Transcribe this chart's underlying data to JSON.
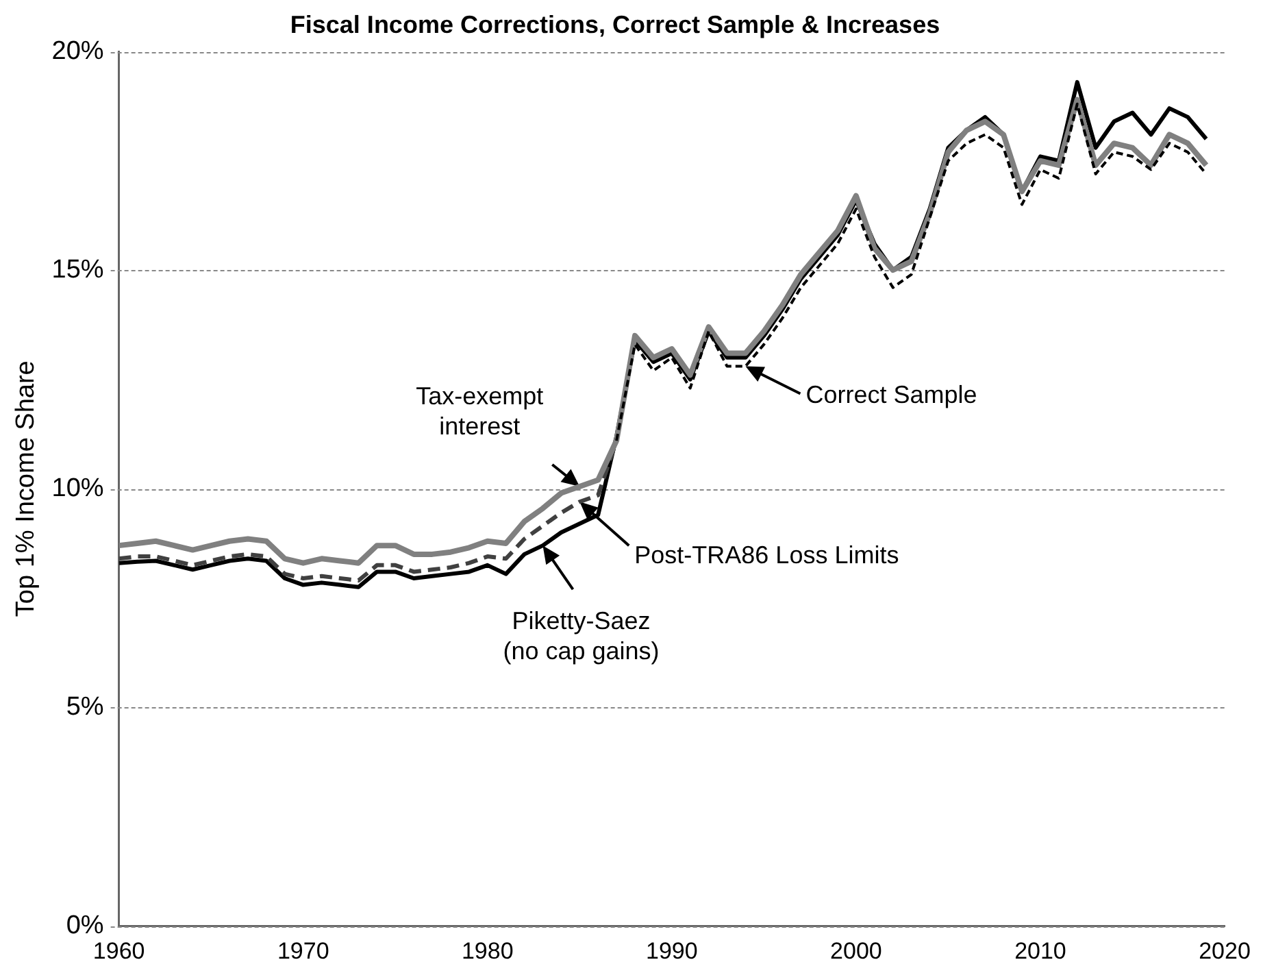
{
  "chart_data": {
    "type": "line",
    "title": "Fiscal Income Corrections, Correct Sample & Increases",
    "ylabel": "Top 1% Income Share",
    "x": [
      1960,
      1961,
      1962,
      1963,
      1964,
      1965,
      1966,
      1967,
      1968,
      1969,
      1970,
      1971,
      1972,
      1973,
      1974,
      1975,
      1976,
      1977,
      1978,
      1979,
      1980,
      1981,
      1982,
      1983,
      1984,
      1985,
      1986,
      1987,
      1988,
      1989,
      1990,
      1991,
      1992,
      1993,
      1994,
      1995,
      1996,
      1997,
      1998,
      1999,
      2000,
      2001,
      2002,
      2003,
      2004,
      2005,
      2006,
      2007,
      2008,
      2009,
      2010,
      2011,
      2012,
      2013,
      2014,
      2015,
      2016,
      2017,
      2018,
      2019
    ],
    "series": [
      {
        "color": "#000000",
        "line_style": "solid",
        "values": [
          8.3,
          8.33,
          8.35,
          8.25,
          8.15,
          8.25,
          8.35,
          8.4,
          8.35,
          7.95,
          7.8,
          7.85,
          7.8,
          7.75,
          8.1,
          8.1,
          7.95,
          8.0,
          8.05,
          8.1,
          8.25,
          8.05,
          8.5,
          8.7,
          9.0,
          9.2,
          9.4,
          11.2,
          13.4,
          12.9,
          13.1,
          12.5,
          13.6,
          13.0,
          13.0,
          13.5,
          14.1,
          14.8,
          15.3,
          15.8,
          16.6,
          15.6,
          15.0,
          15.3,
          16.4,
          17.8,
          18.2,
          18.5,
          18.1,
          16.8,
          17.6,
          17.5,
          19.3,
          17.8,
          18.4,
          18.6,
          18.1,
          18.7,
          18.5,
          18.0
        ]
      },
      {
        "color": "#404040",
        "line_style": "dashed",
        "values": [
          8.4,
          8.45,
          8.45,
          8.35,
          8.25,
          8.35,
          8.45,
          8.5,
          8.45,
          8.05,
          7.95,
          8.0,
          7.95,
          7.9,
          8.25,
          8.25,
          8.1,
          8.15,
          8.2,
          8.3,
          8.45,
          8.4,
          8.85,
          9.15,
          9.45,
          9.7,
          9.85,
          11.1,
          null,
          null,
          null,
          null,
          null,
          null,
          null,
          null,
          null,
          null,
          null,
          null,
          null,
          null,
          null,
          null,
          null,
          null,
          null,
          null,
          null,
          null,
          null,
          null,
          null,
          null,
          null,
          null,
          null,
          null,
          null,
          null
        ]
      },
      {
        "color": "#808080",
        "line_style": "solid",
        "values": [
          8.7,
          8.75,
          8.8,
          8.7,
          8.6,
          8.7,
          8.8,
          8.85,
          8.8,
          8.4,
          8.3,
          8.4,
          8.35,
          8.3,
          8.7,
          8.7,
          8.5,
          8.5,
          8.55,
          8.65,
          8.8,
          8.75,
          9.25,
          9.55,
          9.9,
          10.05,
          10.2,
          11.1,
          13.5,
          13.0,
          13.2,
          12.6,
          13.7,
          13.1,
          13.1,
          13.6,
          14.2,
          14.9,
          15.4,
          15.9,
          16.7,
          15.5,
          15.0,
          15.2,
          16.3,
          17.7,
          18.2,
          18.4,
          18.1,
          16.8,
          17.5,
          17.4,
          18.9,
          17.4,
          17.9,
          17.8,
          17.4,
          18.1,
          17.9,
          17.4
        ]
      },
      {
        "color": "#000000",
        "line_style": "dotted",
        "values": [
          null,
          null,
          null,
          null,
          null,
          null,
          null,
          null,
          null,
          null,
          null,
          null,
          null,
          null,
          null,
          null,
          null,
          null,
          null,
          null,
          null,
          null,
          null,
          null,
          null,
          null,
          null,
          11.1,
          13.3,
          12.7,
          13.0,
          12.3,
          13.6,
          12.8,
          12.8,
          13.3,
          13.9,
          14.6,
          15.1,
          15.6,
          16.4,
          15.3,
          14.6,
          14.9,
          16.2,
          17.5,
          17.9,
          18.1,
          17.8,
          16.5,
          17.3,
          17.1,
          18.8,
          17.2,
          17.7,
          17.6,
          17.3,
          17.9,
          17.7,
          17.2
        ]
      }
    ],
    "xlim": [
      1960,
      2020
    ],
    "xticks": [
      1960,
      1970,
      1980,
      1990,
      2000,
      2010,
      2020
    ],
    "ylim": [
      0,
      20
    ],
    "yticks": [
      {
        "value": 0,
        "label": "0%"
      },
      {
        "value": 5,
        "label": "5%"
      },
      {
        "value": 10,
        "label": "10%"
      },
      {
        "value": 15,
        "label": "15%"
      },
      {
        "value": 20,
        "label": "20%"
      }
    ],
    "grid": "y",
    "legend": false,
    "annotations": [
      {
        "text": "Tax-exempt\ninterest",
        "x": 1985,
        "y": 10.05
      },
      {
        "text": "Post-TRA86 Loss Limits",
        "x": 1985,
        "y": 9.7
      },
      {
        "text": "Piketty-Saez\n(no cap gains)",
        "x": 1983,
        "y": 8.7
      },
      {
        "text": "Correct Sample",
        "x": 1994,
        "y": 12.8
      }
    ]
  }
}
